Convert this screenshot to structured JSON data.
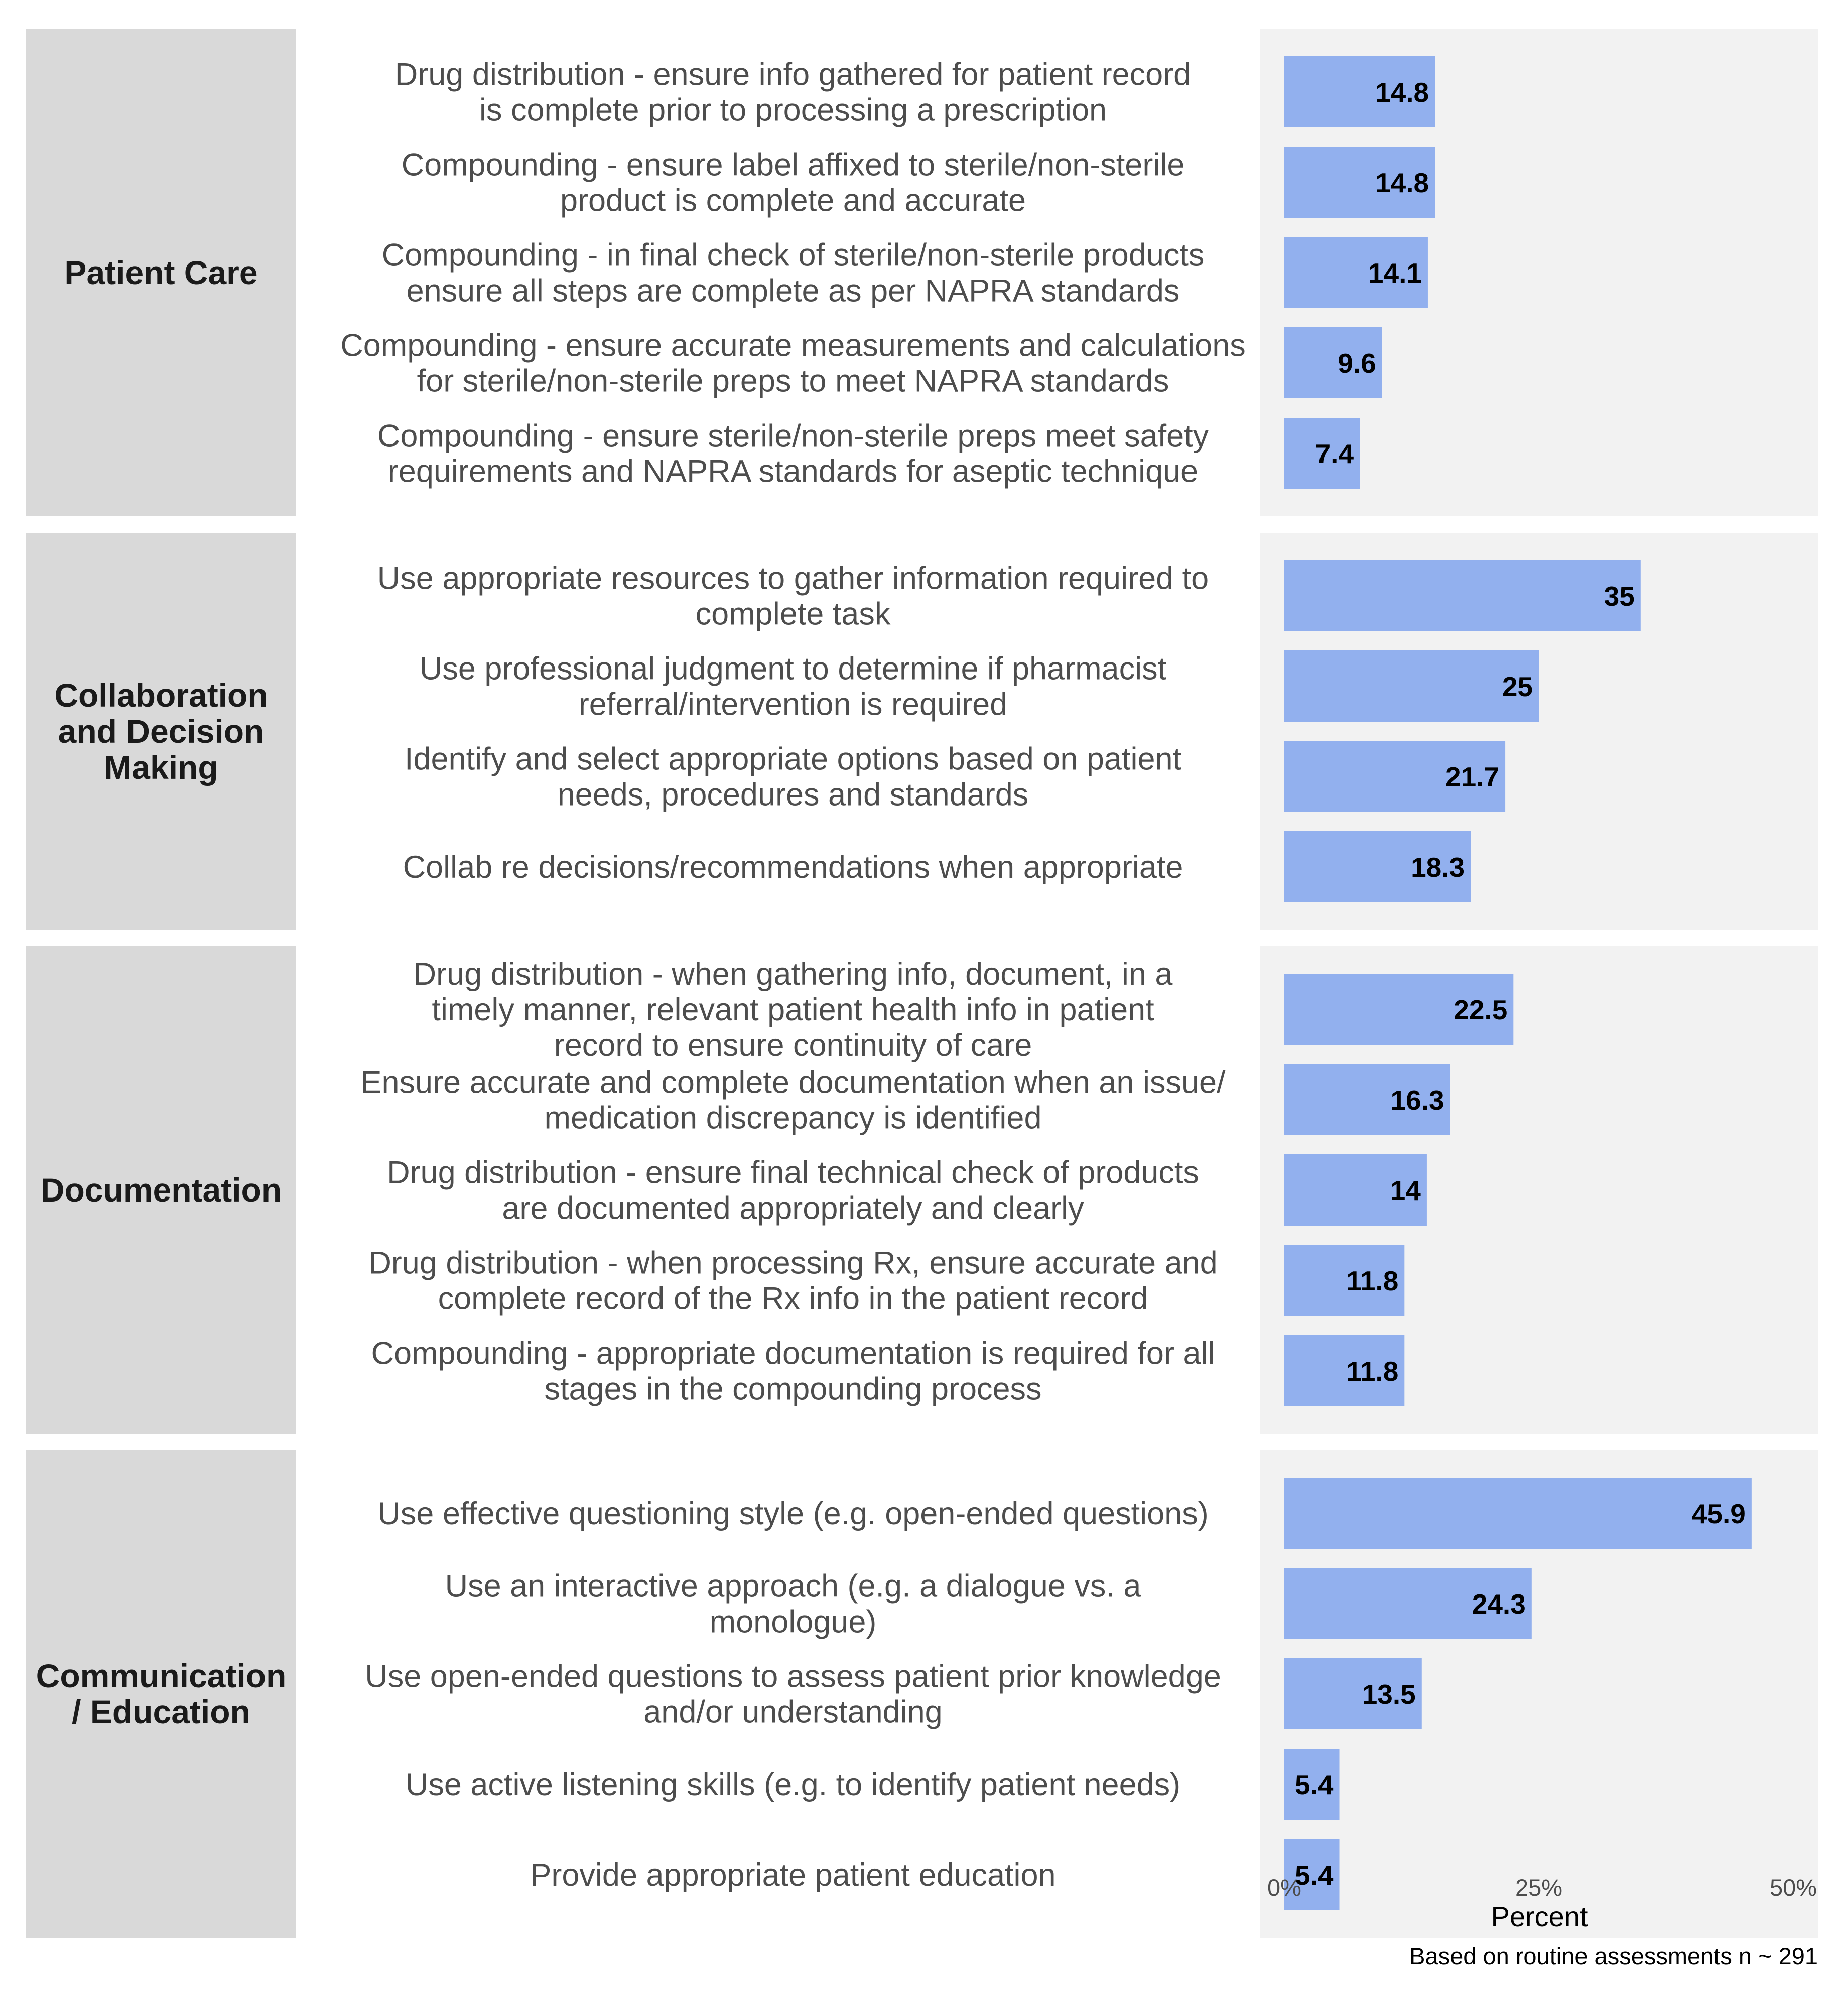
{
  "chart_data": {
    "type": "bar",
    "orientation": "horizontal",
    "xlabel": "Percent",
    "caption": "Based on routine assessments n ~ 291",
    "xlim": [
      0,
      50
    ],
    "x_ticks": [
      {
        "value": 0,
        "label": "0%"
      },
      {
        "value": 25,
        "label": "25%"
      },
      {
        "value": 50,
        "label": "50%"
      }
    ],
    "bar_color": "#92b0ee",
    "groups": [
      {
        "name": "Patient Care",
        "name_lines": [
          "Patient Care"
        ],
        "items": [
          {
            "lines": [
              "Drug distribution - ensure info gathered for patient record",
              "is complete prior to processing a prescription"
            ],
            "value": 14.8,
            "label": "14.8"
          },
          {
            "lines": [
              "Compounding - ensure label affixed to sterile/non-sterile",
              "product is complete and accurate"
            ],
            "value": 14.8,
            "label": "14.8"
          },
          {
            "lines": [
              "Compounding - in final check of sterile/non-sterile products",
              "ensure all steps are complete as per NAPRA standards"
            ],
            "value": 14.1,
            "label": "14.1"
          },
          {
            "lines": [
              "Compounding - ensure accurate measurements and calculations",
              "for sterile/non-sterile preps to meet NAPRA standards"
            ],
            "value": 9.6,
            "label": "9.6"
          },
          {
            "lines": [
              "Compounding - ensure sterile/non-sterile preps meet safety",
              "requirements and NAPRA standards for aseptic technique"
            ],
            "value": 7.4,
            "label": "7.4"
          }
        ]
      },
      {
        "name": "Collaboration and Decision Making",
        "name_lines": [
          "Collaboration",
          "and Decision",
          "Making"
        ],
        "items": [
          {
            "lines": [
              "Use appropriate resources to gather information required to",
              "complete task"
            ],
            "value": 35,
            "label": "35"
          },
          {
            "lines": [
              "Use professional judgment to determine if pharmacist",
              "referral/intervention is required"
            ],
            "value": 25,
            "label": "25"
          },
          {
            "lines": [
              "Identify and select appropriate options based on patient",
              "needs, procedures and standards"
            ],
            "value": 21.7,
            "label": "21.7"
          },
          {
            "lines": [
              "Collab re decisions/recommendations when appropriate"
            ],
            "value": 18.3,
            "label": "18.3"
          }
        ]
      },
      {
        "name": "Documentation",
        "name_lines": [
          "Documentation"
        ],
        "items": [
          {
            "lines": [
              "Drug distribution - when gathering info, document, in a",
              "timely manner, relevant patient health info in patient",
              "record to ensure continuity of care"
            ],
            "value": 22.5,
            "label": "22.5"
          },
          {
            "lines": [
              "Ensure accurate and complete documentation when an issue/",
              "medication discrepancy is identified"
            ],
            "value": 16.3,
            "label": "16.3"
          },
          {
            "lines": [
              "Drug distribution - ensure final technical check of products",
              "are documented appropriately and clearly"
            ],
            "value": 14,
            "label": "14"
          },
          {
            "lines": [
              "Drug distribution - when processing Rx, ensure accurate and",
              "complete record of the Rx info in the patient record"
            ],
            "value": 11.8,
            "label": "11.8"
          },
          {
            "lines": [
              "Compounding - appropriate documentation is required for all",
              "stages in the compounding process"
            ],
            "value": 11.8,
            "label": "11.8"
          }
        ]
      },
      {
        "name": "Communication / Education",
        "name_lines": [
          "Communication",
          "/ Education"
        ],
        "items": [
          {
            "lines": [
              "Use effective questioning style (e.g. open-ended questions)"
            ],
            "value": 45.9,
            "label": "45.9"
          },
          {
            "lines": [
              "Use an interactive approach (e.g. a dialogue vs. a",
              "monologue)"
            ],
            "value": 24.3,
            "label": "24.3"
          },
          {
            "lines": [
              "Use open-ended questions to assess patient prior knowledge",
              "and/or understanding"
            ],
            "value": 13.5,
            "label": "13.5"
          },
          {
            "lines": [
              "Use active listening skills (e.g. to identify patient needs)"
            ],
            "value": 5.4,
            "label": "5.4"
          },
          {
            "lines": [
              "Provide appropriate patient education"
            ],
            "value": 5.4,
            "label": "5.4"
          }
        ]
      }
    ]
  }
}
